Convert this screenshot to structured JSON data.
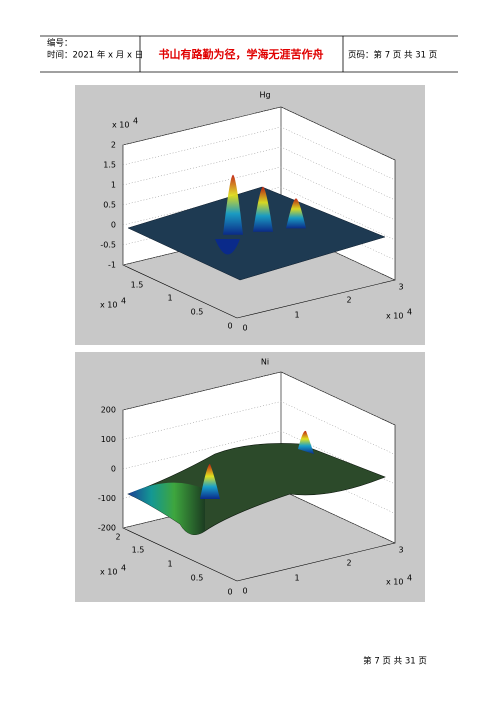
{
  "header": {
    "number_label": "编号：",
    "date": "时间：2021 年 x 月 x 日",
    "motto": "书山有路勤为径，学海无涯苦作舟",
    "page_info": "页码：第 7 页 共 31 页"
  },
  "figures": [
    {
      "title": "Hg",
      "z_ticks": [
        "2",
        "1.5",
        "1",
        "0.5",
        "0",
        "-0.5",
        "-1"
      ],
      "z_exponent": "x 10",
      "z_exponent_power": "4",
      "y_ticks": [
        "0",
        "0.5",
        "1",
        "1.5"
      ],
      "y_exponent": "x 10",
      "y_exponent_power": "4",
      "x_ticks": [
        "0",
        "1",
        "2",
        "3"
      ],
      "x_exponent": "x 10",
      "x_exponent_power": "4"
    },
    {
      "title": "Ni",
      "z_ticks": [
        "200",
        "100",
        "0",
        "-100",
        "-200"
      ],
      "y_ticks": [
        "0",
        "0.5",
        "1",
        "1.5",
        "2"
      ],
      "y_exponent": "x 10",
      "y_exponent_power": "4",
      "x_ticks": [
        "0",
        "1",
        "2",
        "3"
      ],
      "x_exponent": "x 10",
      "x_exponent_power": "4"
    }
  ],
  "footer": "第 7 页 共 31 页"
}
